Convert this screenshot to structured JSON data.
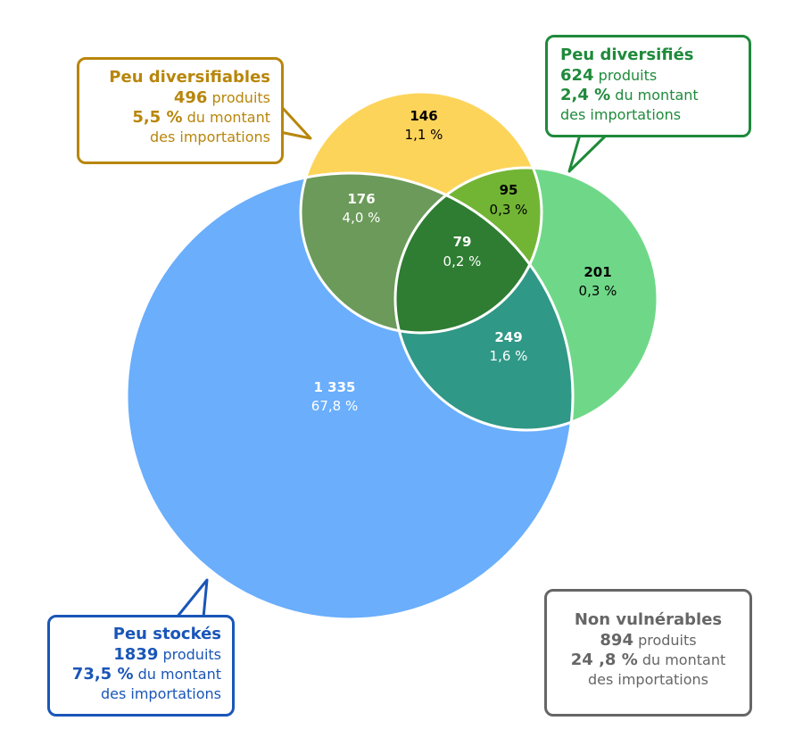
{
  "colors": {
    "peu_stockes": "#6aaefc",
    "peu_diversifiables": "#fdd45a",
    "peu_diversifies": "#6fd888",
    "stockes_diversifiables": "#6b9a5a",
    "stockes_diversifies": "#2f9886",
    "diversifiables_diversifies": "#72b535",
    "triple": "#2e7d32",
    "callout_gold": "#b8860b",
    "callout_green": "#1f8a3b",
    "callout_blue": "#1a56b8",
    "callout_gray": "#666666"
  },
  "regions": {
    "diversifiables_only": {
      "count": "146",
      "pct": "1,1 %"
    },
    "stockes_diversifiables": {
      "count": "176",
      "pct": "4,0 %"
    },
    "diversifiables_diversifies": {
      "count": "95",
      "pct": "0,3 %"
    },
    "triple": {
      "count": "79",
      "pct": "0,2 %"
    },
    "diversifies_only": {
      "count": "201",
      "pct": "0,3 %"
    },
    "stockes_diversifies": {
      "count": "249",
      "pct": "1,6 %"
    },
    "stockes_only": {
      "count": "1 335",
      "pct": "67,8 %"
    }
  },
  "callouts": {
    "peu_diversifiables": {
      "title": "Peu diversifiables",
      "count": "496",
      "count_suffix": " produits",
      "pct": "5,5 %",
      "pct_suffix": " du montant",
      "line3": "des importations"
    },
    "peu_diversifies": {
      "title": "Peu diversifiés",
      "count": "624",
      "count_suffix": " produits",
      "pct": "2,4 %",
      "pct_suffix": " du montant",
      "line3": "des importations"
    },
    "peu_stockes": {
      "title": "Peu stockés",
      "count": "1839",
      "count_suffix": " produits",
      "pct": "73,5 %",
      "pct_suffix": " du montant",
      "line3": "des importations"
    },
    "non_vulnerables": {
      "title": "Non vulnérables",
      "count": "894",
      "count_suffix": " produits",
      "pct": "24 ,8 %",
      "pct_suffix": " du montant",
      "line3": "des importations"
    }
  }
}
